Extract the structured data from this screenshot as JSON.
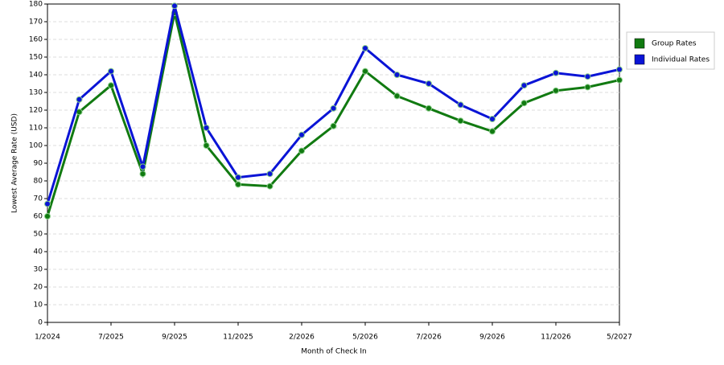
{
  "chart_data": {
    "type": "line",
    "x_label": "Month of Check In",
    "y_label": "Lowest Average Rate (USD)",
    "categories": [
      "1/2024",
      null,
      "7/2025",
      null,
      "9/2025",
      null,
      "11/2025",
      null,
      "2/2026",
      null,
      "5/2026",
      null,
      "7/2026",
      null,
      "9/2026",
      null,
      "11/2026",
      null,
      "5/2027"
    ],
    "series": [
      {
        "name": "Group Rates",
        "color": "#117a11",
        "values": [
          60,
          119,
          134,
          84,
          175,
          100,
          78,
          77,
          97,
          111,
          142,
          128,
          121,
          114,
          108,
          124,
          131,
          133,
          137
        ]
      },
      {
        "name": "Individual Rates",
        "color": "#0a14d6",
        "values": [
          67,
          126,
          142,
          88,
          179,
          110,
          82,
          84,
          106,
          121,
          155,
          140,
          135,
          123,
          115,
          134,
          141,
          139,
          143
        ]
      }
    ],
    "ylim": [
      0,
      180
    ],
    "yticks": [
      0,
      10,
      20,
      30,
      40,
      50,
      60,
      70,
      80,
      90,
      100,
      110,
      120,
      130,
      140,
      150,
      160,
      170,
      180
    ],
    "grid": true,
    "legend": "right"
  }
}
